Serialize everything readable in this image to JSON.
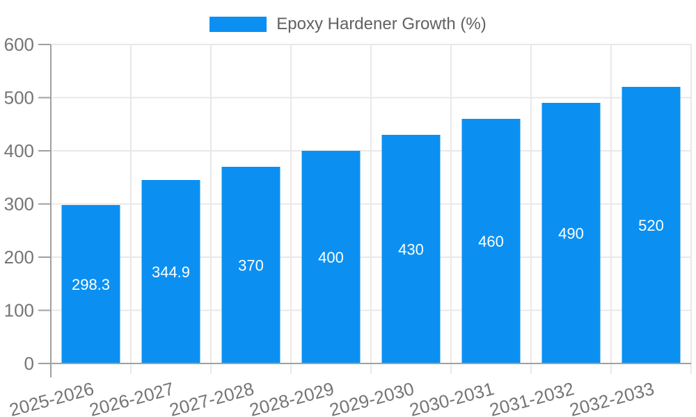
{
  "chart_data": {
    "type": "bar",
    "title": "",
    "xlabel": "",
    "ylabel": "",
    "legend": {
      "label": "Epoxy Hardener Growth (%)",
      "position": "top-center"
    },
    "categories": [
      "2025-2026",
      "2026-2027",
      "2027-2028",
      "2028-2029",
      "2029-2030",
      "2030-2031",
      "2031-2032",
      "2032-2033"
    ],
    "series": [
      {
        "name": "Epoxy Hardener Growth (%)",
        "values": [
          298.3,
          344.9,
          370,
          400,
          430,
          460,
          490,
          520
        ]
      }
    ],
    "value_labels": [
      "298.3",
      "344.9",
      "370",
      "400",
      "430",
      "460",
      "490",
      "520"
    ],
    "ylim": [
      0,
      600
    ],
    "yticks": [
      0,
      100,
      200,
      300,
      400,
      500,
      600
    ],
    "grid": true,
    "x_tick_rotation_deg": -15
  },
  "colors": {
    "bar": "#0b90f2",
    "grid": "#e8e8e8",
    "axis": "#a0a0a0",
    "tick_label": "#757575",
    "value_label": "#ffffff",
    "legend_text": "#616161",
    "background": "#ffffff"
  }
}
